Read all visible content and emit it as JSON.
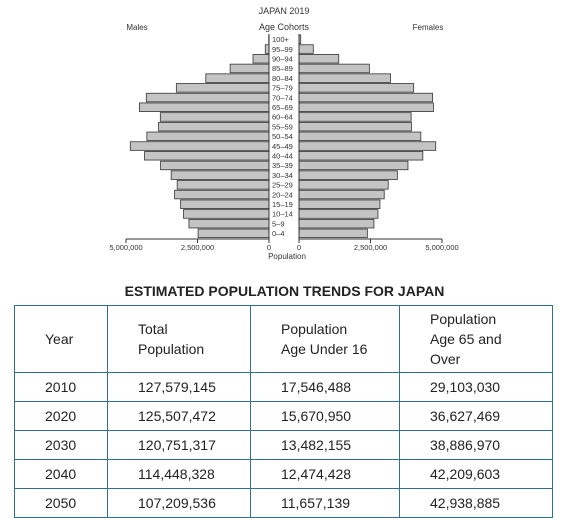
{
  "chart_data": [
    {
      "type": "bar",
      "orientation": "horizontal-pyramid",
      "title": "JAPAN 2019",
      "category_label": "Age Cohorts",
      "xlabel": "Population",
      "left_label": "Males",
      "right_label": "Females",
      "xlim": [
        0,
        5000000
      ],
      "tick_labels_left": [
        "5,000,000",
        "2,500,000",
        "0"
      ],
      "tick_labels_right": [
        "0",
        "2,500,000",
        "5,000,000"
      ],
      "tick_values": [
        5000000,
        2500000,
        0
      ],
      "categories": [
        "100+",
        "95–99",
        "90–94",
        "85–89",
        "80–84",
        "75–79",
        "70–74",
        "65–69",
        "60–64",
        "55–59",
        "50–54",
        "45–49",
        "40–44",
        "35–39",
        "30–34",
        "25–29",
        "20–24",
        "15–19",
        "10–14",
        "5–9",
        "0–4"
      ],
      "series": [
        {
          "name": "Males",
          "values": [
            10000,
            130000,
            560000,
            1360000,
            2210000,
            3240000,
            4290000,
            4530000,
            3800000,
            3860000,
            4270000,
            4850000,
            4350000,
            3790000,
            3420000,
            3210000,
            3300000,
            3090000,
            2990000,
            2800000,
            2480000
          ]
        },
        {
          "name": "Females",
          "values": [
            60000,
            500000,
            1390000,
            2460000,
            3200000,
            4010000,
            4670000,
            4700000,
            3920000,
            3930000,
            4260000,
            4780000,
            4330000,
            3810000,
            3440000,
            3120000,
            2980000,
            2830000,
            2760000,
            2620000,
            2390000
          ]
        }
      ]
    },
    {
      "type": "table",
      "title": "ESTIMATED POPULATION TRENDS FOR JAPAN",
      "columns": [
        "Year",
        "Total Population",
        "Population Age Under 16",
        "Population Age 65 and Over"
      ],
      "rows": [
        [
          "2010",
          "127,579,145",
          "17,546,488",
          "29,103,030"
        ],
        [
          "2020",
          "125,507,472",
          "15,670,950",
          "36,627,469"
        ],
        [
          "2030",
          "120,751,317",
          "13,482,155",
          "38,886,970"
        ],
        [
          "2040",
          "114,448,328",
          "12,474,428",
          "42,209,603"
        ],
        [
          "2050",
          "107,209,536",
          "11,657,139",
          "42,938,885"
        ]
      ]
    }
  ],
  "table_header": {
    "year": "Year",
    "total": [
      "Total",
      "Population"
    ],
    "under16": [
      "Population",
      "Age Under 16"
    ],
    "over65": [
      "Population",
      "Age 65 and",
      "Over"
    ]
  },
  "colors": {
    "bar_fill": "#c4c4c4",
    "bar_stroke": "#333333",
    "table_border": "#2f6f8f"
  }
}
